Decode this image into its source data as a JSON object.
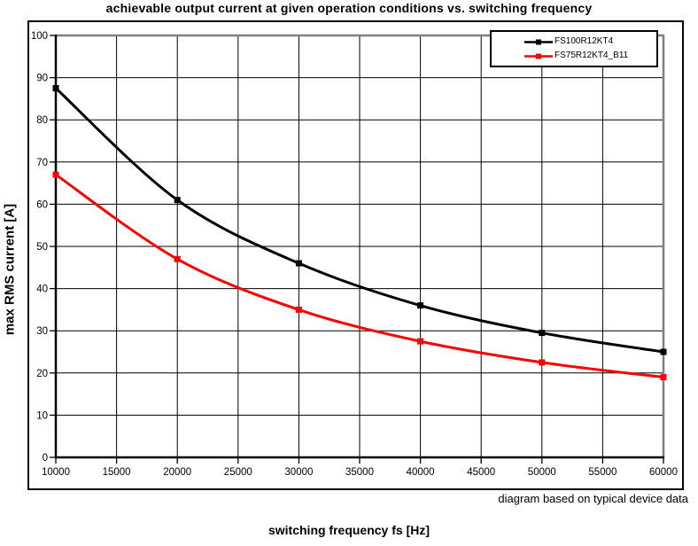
{
  "page": {
    "footnote": "diagram based on typical device data"
  },
  "chart_data": {
    "type": "line",
    "title": "achievable output current at given operation conditions vs. switching frequency",
    "xlabel": "switching frequency fs [Hz]",
    "ylabel": "max RMS current [A]",
    "x": [
      10000,
      20000,
      30000,
      40000,
      50000,
      60000
    ],
    "series": [
      {
        "name": "FS100R12KT4",
        "color": "#000000",
        "values": [
          87.5,
          61,
          46,
          36,
          29.5,
          25
        ]
      },
      {
        "name": "FS75R12KT4_B11",
        "color": "#ff0000",
        "values": [
          67,
          47,
          35,
          27.5,
          22.5,
          19
        ]
      }
    ],
    "x_ticks": [
      10000,
      15000,
      20000,
      25000,
      30000,
      35000,
      40000,
      45000,
      50000,
      55000,
      60000
    ],
    "y_ticks": [
      0,
      10,
      20,
      30,
      40,
      50,
      60,
      70,
      80,
      90,
      100
    ],
    "xlim": [
      10000,
      60000
    ],
    "ylim": [
      0,
      100
    ],
    "grid": true,
    "line_style": "smooth",
    "marker": "square",
    "legend_position": "top-right",
    "colors": {
      "grid": "#000000",
      "axis": "#000000",
      "plot_border_top_right": "#808080",
      "background": "#ffffff"
    }
  }
}
